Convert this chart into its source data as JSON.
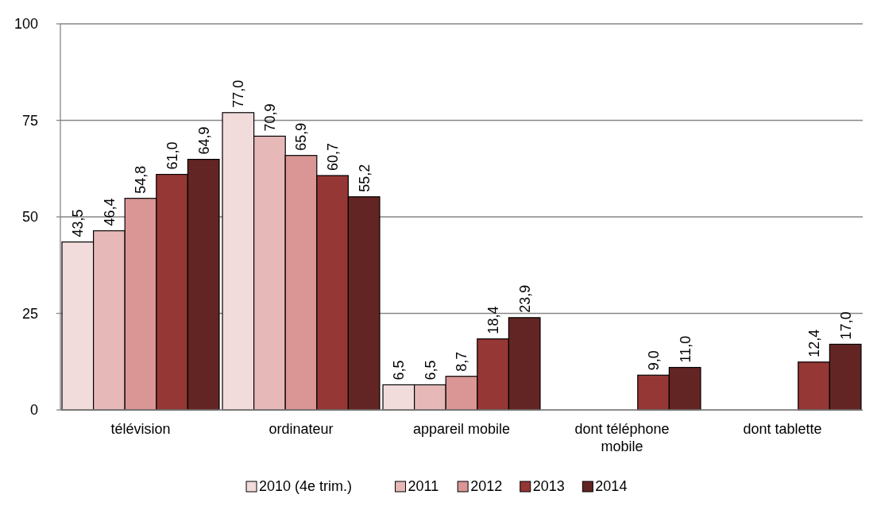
{
  "chart_data": {
    "type": "bar",
    "categories": [
      "télévision",
      "ordinateur",
      "appareil mobile",
      "dont téléphone mobile",
      "dont tablette"
    ],
    "series": [
      {
        "name": "2010 (4e trim.)",
        "color": "#f2dcdb",
        "values": [
          43.5,
          77.0,
          6.5,
          null,
          null
        ],
        "value_labels": [
          "43,5",
          "77,0",
          "6,5",
          null,
          null
        ]
      },
      {
        "name": "2011",
        "color": "#e6b9b8",
        "values": [
          46.4,
          70.9,
          6.5,
          null,
          null
        ],
        "value_labels": [
          "46,4",
          "70,9",
          "6,5",
          null,
          null
        ]
      },
      {
        "name": "2012",
        "color": "#d99694",
        "values": [
          54.8,
          65.9,
          8.7,
          null,
          null
        ],
        "value_labels": [
          "54,8",
          "65,9",
          "8,7",
          null,
          null
        ]
      },
      {
        "name": "2013",
        "color": "#953735",
        "values": [
          61.0,
          60.7,
          18.4,
          9.0,
          12.4
        ],
        "value_labels": [
          "61,0",
          "60,7",
          "18,4",
          "9,0",
          "12,4"
        ]
      },
      {
        "name": "2014",
        "color": "#632523",
        "values": [
          64.9,
          55.2,
          23.9,
          11.0,
          17.0
        ],
        "value_labels": [
          "64,9",
          "55,2",
          "23,9",
          "11,0",
          "17,0"
        ]
      }
    ],
    "ylim": [
      0,
      100
    ],
    "yticks": [
      0,
      25,
      50,
      75,
      100
    ],
    "grid": "y",
    "legend": "bottom"
  }
}
